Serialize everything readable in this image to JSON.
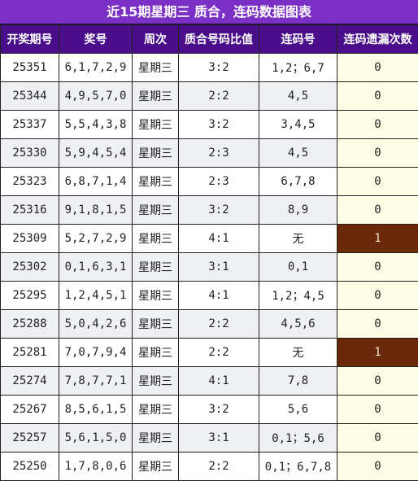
{
  "title": "近15期星期三 质合，连码数据图表",
  "headers": [
    "开奖期号",
    "奖号",
    "周次",
    "质合号码比值",
    "连码号",
    "连码遗漏次数"
  ],
  "rows": [
    {
      "issue": "25351",
      "number": "6,1,7,2,9",
      "weekday": "星期三",
      "ratio": "3:2",
      "consecutive": "1,2；6,7",
      "missed": "0"
    },
    {
      "issue": "25344",
      "number": "4,9,5,7,0",
      "weekday": "星期三",
      "ratio": "2:2",
      "consecutive": "4,5",
      "missed": "0"
    },
    {
      "issue": "25337",
      "number": "5,5,4,3,8",
      "weekday": "星期三",
      "ratio": "3:2",
      "consecutive": "3,4,5",
      "missed": "0"
    },
    {
      "issue": "25330",
      "number": "5,9,4,5,4",
      "weekday": "星期三",
      "ratio": "2:3",
      "consecutive": "4,5",
      "missed": "0"
    },
    {
      "issue": "25323",
      "number": "6,8,7,1,4",
      "weekday": "星期三",
      "ratio": "2:3",
      "consecutive": "6,7,8",
      "missed": "0"
    },
    {
      "issue": "25316",
      "number": "9,1,8,1,5",
      "weekday": "星期三",
      "ratio": "3:2",
      "consecutive": "8,9",
      "missed": "0"
    },
    {
      "issue": "25309",
      "number": "5,2,7,2,9",
      "weekday": "星期三",
      "ratio": "4:1",
      "consecutive": "无",
      "missed": "1"
    },
    {
      "issue": "25302",
      "number": "0,1,6,3,1",
      "weekday": "星期三",
      "ratio": "3:1",
      "consecutive": "0,1",
      "missed": "0"
    },
    {
      "issue": "25295",
      "number": "1,2,4,5,1",
      "weekday": "星期三",
      "ratio": "4:1",
      "consecutive": "1,2；4,5",
      "missed": "0"
    },
    {
      "issue": "25288",
      "number": "5,0,4,2,6",
      "weekday": "星期三",
      "ratio": "2:2",
      "consecutive": "4,5,6",
      "missed": "0"
    },
    {
      "issue": "25281",
      "number": "7,0,7,9,4",
      "weekday": "星期三",
      "ratio": "2:2",
      "consecutive": "无",
      "missed": "1"
    },
    {
      "issue": "25274",
      "number": "7,8,7,7,1",
      "weekday": "星期三",
      "ratio": "4:1",
      "consecutive": "7,8",
      "missed": "0"
    },
    {
      "issue": "25267",
      "number": "8,5,6,1,5",
      "weekday": "星期三",
      "ratio": "3:2",
      "consecutive": "5,6",
      "missed": "0"
    },
    {
      "issue": "25257",
      "number": "5,6,1,5,0",
      "weekday": "星期三",
      "ratio": "3:1",
      "consecutive": "0,1；5,6",
      "missed": "0"
    },
    {
      "issue": "25250",
      "number": "1,7,8,0,6",
      "weekday": "星期三",
      "ratio": "2:2",
      "consecutive": "0,1；6,7,8",
      "missed": "0"
    }
  ]
}
